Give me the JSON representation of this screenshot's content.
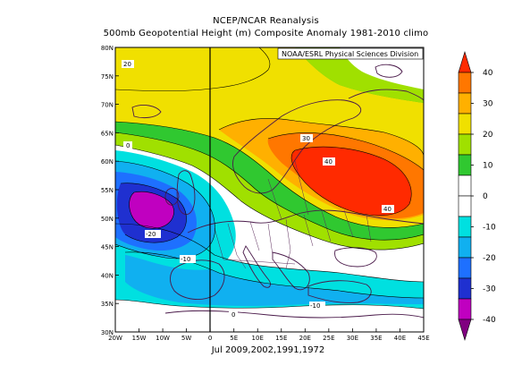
{
  "header": {
    "line1": "NCEP/NCAR Reanalysis",
    "line2": "500mb Geopotential Height (m) Composite Anomaly 1981-2010 climo"
  },
  "credit": "NOAA/ESRL Physical Sciences Division",
  "subcaption": "Jul 2009,2002,1991,1972",
  "map": {
    "lon_range": [
      -20,
      45
    ],
    "lat_range": [
      30,
      80
    ],
    "lon_ticks": [
      "20W",
      "15W",
      "10W",
      "5W",
      "0",
      "5E",
      "10E",
      "15E",
      "20E",
      "25E",
      "30E",
      "35E",
      "40E",
      "45E"
    ],
    "lat_ticks": [
      "80N",
      "75N",
      "70N",
      "65N",
      "60N",
      "55N",
      "50N",
      "45N",
      "40N",
      "35N",
      "30N"
    ],
    "contour_labels": [
      "20",
      "0",
      "30",
      "40",
      "40",
      "-20",
      "-10",
      "-10",
      "0"
    ]
  },
  "colorbar": {
    "ticks": [
      "40",
      "30",
      "20",
      "10",
      "0",
      "-10",
      "-20",
      "-30",
      "-40"
    ],
    "colors": [
      "#ff2a00",
      "#ff7700",
      "#ffb000",
      "#f0e000",
      "#a0e000",
      "#30c830",
      "#ffffff",
      "#ffffff",
      "#00e0e0",
      "#10b0f0",
      "#1e70ff",
      "#1f30d0",
      "#c000c0",
      "#800080"
    ]
  }
}
